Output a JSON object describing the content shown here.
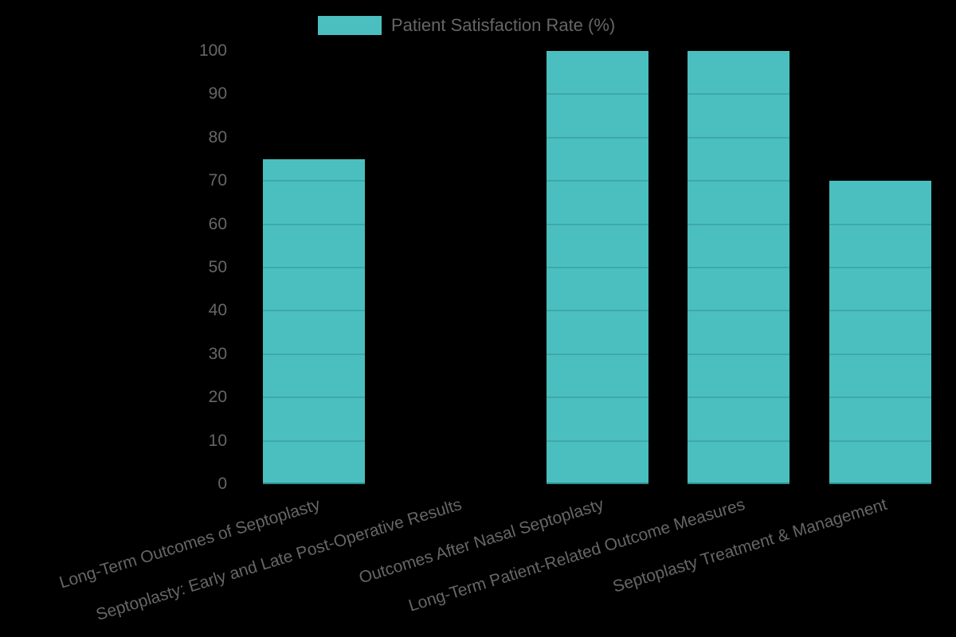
{
  "chart_data": {
    "type": "bar",
    "title": "",
    "xlabel": "",
    "ylabel": "",
    "ylim": [
      0,
      100
    ],
    "yticks": [
      0,
      10,
      20,
      30,
      40,
      50,
      60,
      70,
      80,
      90,
      100
    ],
    "grid": true,
    "legend_position": "top",
    "categories": [
      "Long-Term Outcomes of Septoplasty",
      "Septoplasty: Early and Late Post-Operative Results",
      "Outcomes After Nasal Septoplasty",
      "Long-Term Patient-Related Outcome Measures",
      "Septoplasty Treatment & Management"
    ],
    "series": [
      {
        "name": "Patient Satisfaction Rate (%)",
        "color": "#4BBFBF",
        "values": [
          75,
          0,
          100,
          100,
          70
        ]
      }
    ]
  },
  "legend": {
    "label": "Patient Satisfaction Rate (%)"
  },
  "colors": {
    "bar": "#4BBFBF",
    "background": "#000000",
    "text": "#666666"
  }
}
